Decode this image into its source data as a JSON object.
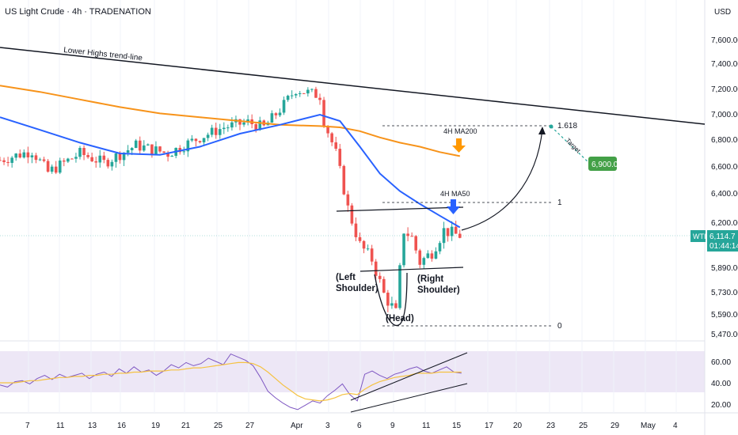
{
  "header": {
    "title": "US Light Crude · 4h · TRADENATION",
    "currency": "USD"
  },
  "price_axis": {
    "ticks": [
      "7,600.00",
      "7,400.00",
      "7,200.00",
      "7,000.00",
      "6,800.00",
      "6,600.00",
      "6,400.00",
      "6,200.00",
      "5,890.00",
      "5,730.00",
      "5,590.00",
      "5,470.00"
    ],
    "symbol_tag": "WTI",
    "last_price": "6,114.7",
    "countdown": "01:44:14",
    "target_label": "6,900.0"
  },
  "rsi_axis": {
    "ticks": [
      "60.00",
      "40.00",
      "20.00"
    ]
  },
  "time_axis": {
    "ticks": [
      "7",
      "11",
      "13",
      "16",
      "19",
      "21",
      "25",
      "27",
      "Apr",
      "3",
      "6",
      "9",
      "11",
      "15",
      "17",
      "20",
      "23",
      "25",
      "29",
      "May",
      "4"
    ]
  },
  "annotations": {
    "trendline": "Lower Highs trend-line",
    "ma200": "4H MA200",
    "ma50": "4H MA50",
    "fib_1618": "1.618",
    "fib_1": "1",
    "fib_0": "0",
    "target": "Target",
    "left_shoulder_1": "(Left",
    "left_shoulder_2": "Shoulder)",
    "right_shoulder_1": "(Right",
    "right_shoulder_2": "Shoulder)",
    "head": "(Head)"
  },
  "colors": {
    "up": "#26a69a",
    "down": "#ef5350",
    "ma50": "#2962ff",
    "ma200": "#f7931a",
    "rsi": "#7e57c2",
    "rsi_ma": "#f5c242",
    "target_box": "#43a047",
    "ma200_arrow": "#ff9800",
    "ma50_arrow": "#2962ff"
  },
  "chart_data": [
    {
      "type": "candlestick",
      "title": "US Light Crude · 4h · TRADENATION",
      "ylabel": "USD",
      "x_ticks": [
        "7",
        "11",
        "13",
        "16",
        "19",
        "21",
        "25",
        "27",
        "Apr",
        "3",
        "6",
        "9",
        "11",
        "15",
        "17",
        "20",
        "23",
        "25",
        "29",
        "May",
        "4"
      ],
      "ylim": [
        5400,
        7750
      ],
      "last_price": 6114.7,
      "series": [
        {
          "name": "4H MA50",
          "x": [
            0,
            10,
            20,
            30,
            40,
            50,
            60,
            70,
            80,
            85,
            90,
            95,
            100,
            105,
            110,
            115
          ],
          "values": [
            6980,
            6880,
            6780,
            6700,
            6690,
            6750,
            6850,
            6920,
            7000,
            6950,
            6750,
            6550,
            6420,
            6330,
            6250,
            6170
          ]
        },
        {
          "name": "4H MA200",
          "x": [
            0,
            10,
            20,
            30,
            40,
            50,
            60,
            70,
            80,
            85,
            90,
            95,
            100,
            105,
            110,
            115
          ],
          "values": [
            7230,
            7180,
            7120,
            7060,
            7010,
            6980,
            6950,
            6920,
            6910,
            6900,
            6870,
            6820,
            6780,
            6750,
            6710,
            6680
          ]
        }
      ],
      "levels": [
        {
          "name": "1.618",
          "value": 6900
        },
        {
          "name": "1",
          "value": 6300
        },
        {
          "name": "0",
          "value": 5520
        }
      ],
      "target": 6900.0,
      "annotations": [
        "Lower Highs trend-line",
        "4H MA200",
        "4H MA50",
        "(Left Shoulder)",
        "(Head)",
        "(Right Shoulder)",
        "Target"
      ]
    },
    {
      "type": "line",
      "ylim": [
        10,
        70
      ],
      "y_ticks": [
        60,
        40,
        20
      ],
      "series": [
        {
          "values": [
            38,
            36,
            41,
            42,
            39,
            44,
            47,
            43,
            48,
            45,
            47,
            49,
            44,
            48,
            50,
            46,
            53,
            49,
            55,
            50,
            52,
            47,
            51,
            57,
            54,
            59,
            56,
            58,
            63,
            60,
            57,
            67,
            64,
            61,
            56,
            45,
            32,
            26,
            21,
            17,
            15,
            19,
            23,
            21,
            28,
            33,
            39,
            29,
            23,
            48,
            51,
            47,
            44,
            48,
            50,
            53,
            55,
            51,
            49,
            52,
            55,
            50,
            49
          ]
        },
        {
          "values": [
            40,
            40,
            40,
            41,
            42,
            42,
            43,
            44,
            45,
            45,
            46,
            46,
            47,
            47,
            48,
            48,
            49,
            49,
            50,
            50,
            51,
            51,
            51,
            52,
            52,
            53,
            54,
            54,
            55,
            56,
            57,
            58,
            59,
            59,
            58,
            55,
            50,
            44,
            38,
            33,
            28,
            25,
            24,
            23,
            24,
            26,
            29,
            30,
            29,
            34,
            38,
            41,
            43,
            45,
            46,
            47,
            49,
            49,
            49,
            50,
            50,
            50,
            50
          ]
        }
      ]
    }
  ]
}
